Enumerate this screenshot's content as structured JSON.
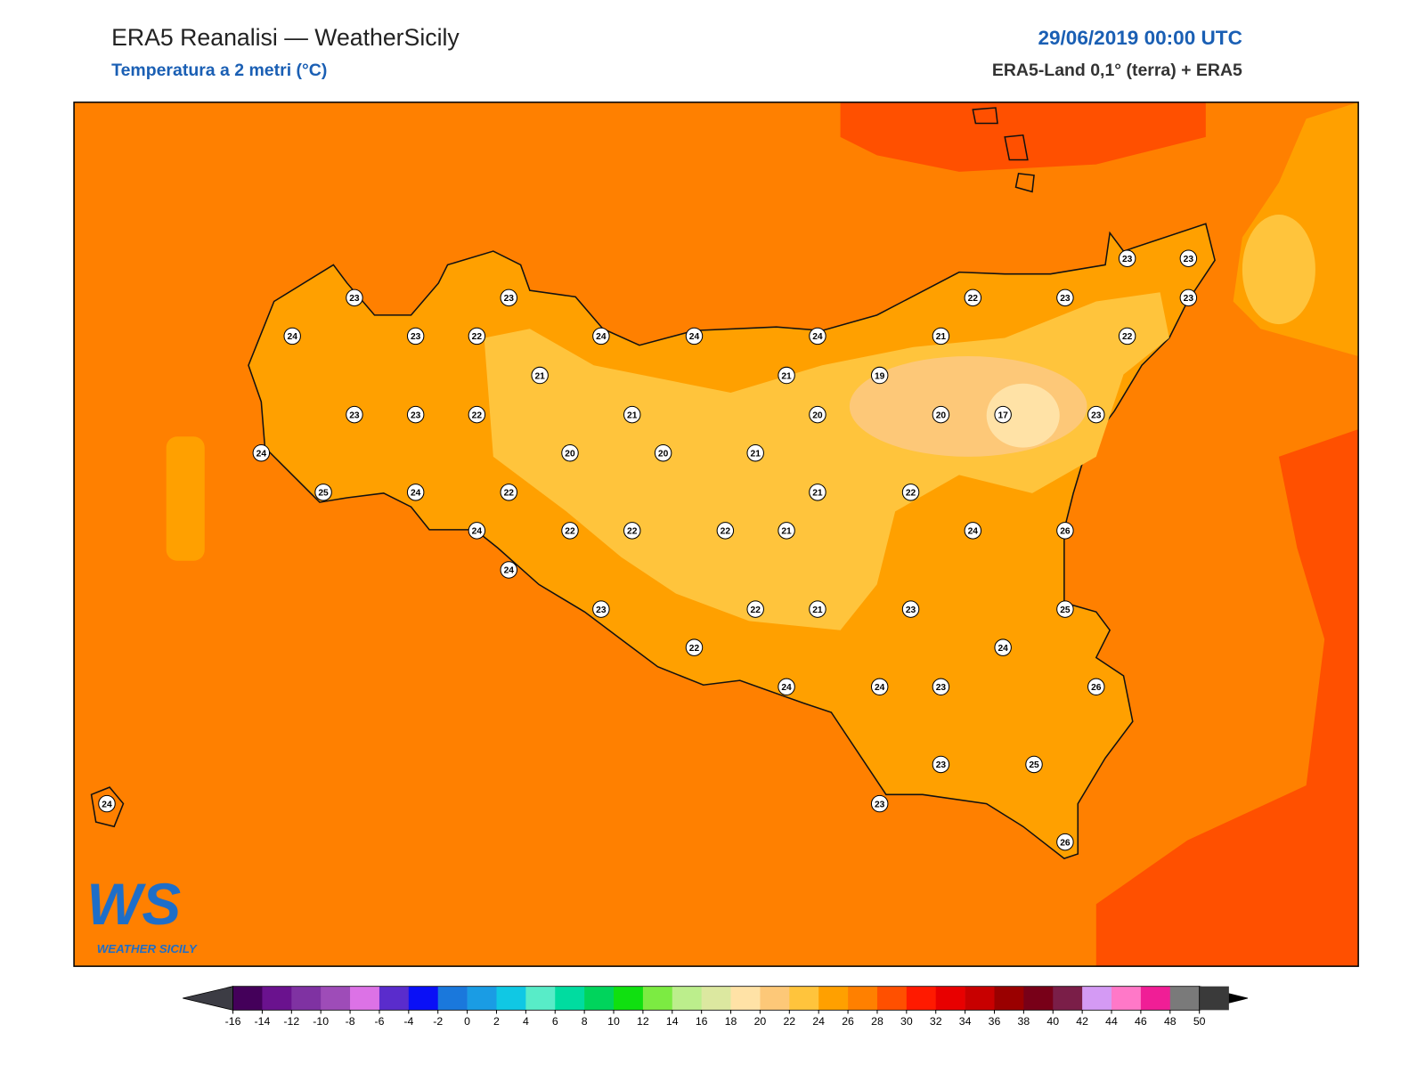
{
  "header": {
    "title": "ERA5 Reanalisi — WeatherSicily",
    "subtitle": "Temperatura a 2 metri (°C)",
    "date": "29/06/2019 00:00 UTC",
    "source": "ERA5-Land 0,1° (terra) + ERA5"
  },
  "logo": {
    "mark": "WS",
    "name": "WEATHER SICILY"
  },
  "stations": [
    23,
    23,
    24,
    23,
    22,
    24,
    24,
    24,
    22,
    23,
    23,
    23,
    23,
    21,
    22,
    21,
    21,
    19,
    23,
    23,
    22,
    21,
    20,
    20,
    17,
    23,
    24,
    20,
    20,
    21,
    25,
    24,
    22,
    21,
    22,
    24,
    22,
    22,
    22,
    21,
    24,
    26,
    24,
    23,
    22,
    21,
    23,
    25,
    22,
    24,
    24,
    24,
    23,
    26,
    23,
    25,
    23,
    26,
    24
  ],
  "colorbar": {
    "ticks": [
      -16,
      -14,
      -12,
      -10,
      -8,
      -6,
      -4,
      -2,
      0,
      2,
      4,
      6,
      8,
      10,
      12,
      14,
      16,
      18,
      20,
      22,
      24,
      26,
      28,
      30,
      32,
      34,
      36,
      38,
      40,
      42,
      44,
      46,
      48,
      50
    ],
    "colors": [
      "#44005a",
      "#6a128e",
      "#7f32a2",
      "#9e4cb8",
      "#dc72e6",
      "#5a2ccc",
      "#0a10f6",
      "#1a78dc",
      "#1a9ce4",
      "#10c8e4",
      "#58ecc8",
      "#00dca0",
      "#00d45c",
      "#10e010",
      "#7ceb42",
      "#bcee8c",
      "#dce8a0",
      "#ffe2a6",
      "#fdc878",
      "#ffc43c",
      "#ffa000",
      "#ff8000",
      "#ff5000",
      "#ff1a00",
      "#e80000",
      "#c80000",
      "#9a0000",
      "#780018",
      "#7a1e48",
      "#d49af4",
      "#ff78c8",
      "#f01e96",
      "#7a7a7a",
      "#3a3a3a"
    ],
    "under": "#3c3c44",
    "over": "#000000"
  }
}
